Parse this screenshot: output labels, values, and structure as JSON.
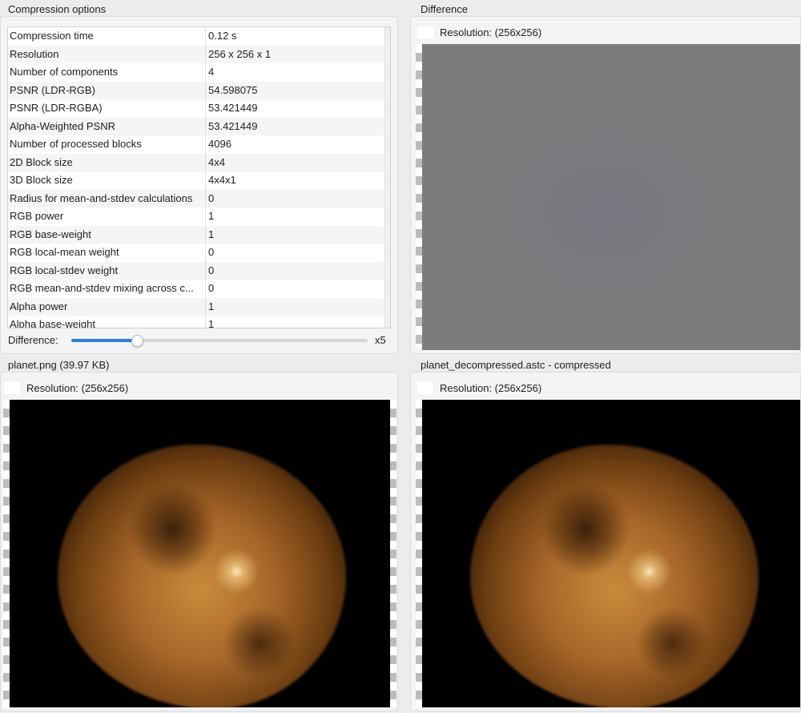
{
  "compression_options": {
    "title": "Compression options",
    "rows": [
      {
        "key": "Compression time",
        "value": "0.12 s"
      },
      {
        "key": "Resolution",
        "value": "256 x 256 x 1"
      },
      {
        "key": "Number of components",
        "value": "4"
      },
      {
        "key": "PSNR (LDR-RGB)",
        "value": "54.598075"
      },
      {
        "key": "PSNR (LDR-RGBA)",
        "value": "53.421449"
      },
      {
        "key": "Alpha-Weighted PSNR",
        "value": "53.421449"
      },
      {
        "key": "Number of processed blocks",
        "value": "4096"
      },
      {
        "key": "2D Block size",
        "value": "4x4"
      },
      {
        "key": "3D Block size",
        "value": "4x4x1"
      },
      {
        "key": "Radius for mean-and-stdev calculations",
        "value": "0"
      },
      {
        "key": "RGB power",
        "value": "1"
      },
      {
        "key": "RGB base-weight",
        "value": "1"
      },
      {
        "key": "RGB local-mean weight",
        "value": "0"
      },
      {
        "key": "RGB local-stdev weight",
        "value": "0"
      },
      {
        "key": "RGB mean-and-stdev mixing across c...",
        "value": "0"
      },
      {
        "key": "Alpha power",
        "value": "1"
      },
      {
        "key": "Alpha base-weight",
        "value": "1"
      }
    ],
    "difference_slider": {
      "label": "Difference:",
      "max_label": "x5",
      "value_fraction": 0.22
    }
  },
  "difference_panel": {
    "title": "Difference",
    "resolution": "Resolution: (256x256)"
  },
  "source_panel": {
    "title": "planet.png (39.97 KB)",
    "resolution": "Resolution: (256x256)"
  },
  "compressed_panel": {
    "title": "planet_decompressed.astc  - compressed",
    "resolution": "Resolution: (256x256)"
  },
  "colors": {
    "accent": "#2f7de1",
    "difference_gray": "#7c7c7c",
    "planet_core": "#c98a3c"
  }
}
